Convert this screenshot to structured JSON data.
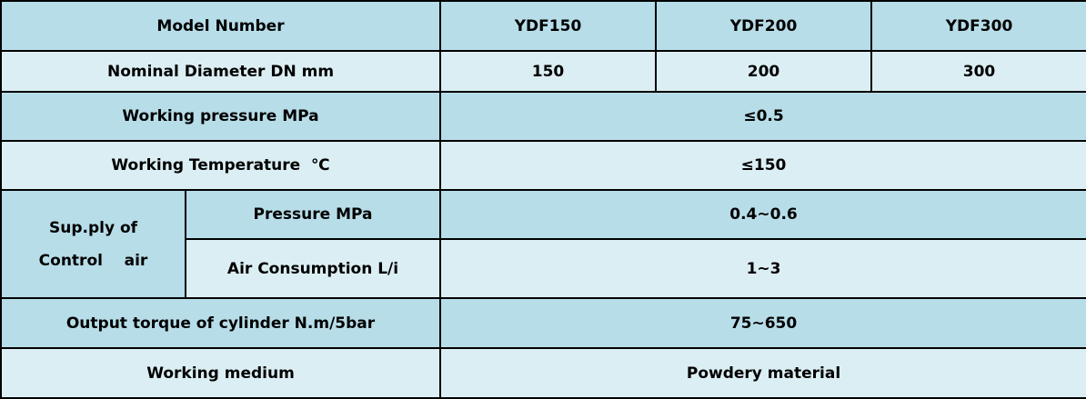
{
  "colors": {
    "dark_row": "#b7dde8",
    "light_row": "#dbeef3",
    "border": "#000000"
  },
  "table": {
    "header": {
      "label": "Model Number",
      "models": [
        "YDF150",
        "YDF200",
        "YDF300"
      ]
    },
    "diameter": {
      "label": "Nominal Diameter DN mm",
      "values": [
        "150",
        "200",
        "300"
      ]
    },
    "pressure": {
      "label": "Working pressure MPa",
      "value": "≤0.5"
    },
    "temperature": {
      "label": "Working Temperature  ℃",
      "value": "≤150"
    },
    "control_air": {
      "label_line1": "Sup.ply of",
      "label_line2": "Control    air",
      "pressure": {
        "label": "Pressure MPa",
        "value": "0.4~0.6"
      },
      "consumption": {
        "label": "Air Consumption L/i",
        "value": "1~3"
      }
    },
    "torque": {
      "label": "Output torque of cylinder N.m/5bar",
      "value": "75~650"
    },
    "medium": {
      "label": "Working medium",
      "value": "Powdery material"
    }
  }
}
